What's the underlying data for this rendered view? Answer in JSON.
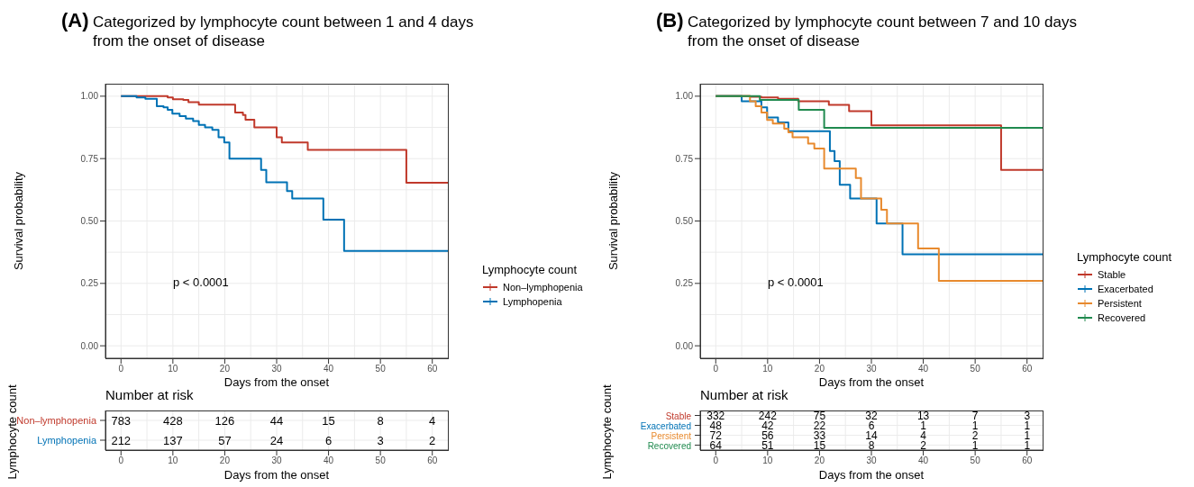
{
  "chart_data": [
    {
      "type": "step",
      "title": "(A)",
      "subtitle": "Categorized by lymphocyte count between 1 and 4 days from the onset of disease",
      "xlabel": "Days from the onset",
      "ylabel": "Survival probability",
      "legend_title": "Lymphocyte count",
      "legend": "right",
      "grid": true,
      "xlim": [
        -3,
        63
      ],
      "xticks": [
        0,
        10,
        20,
        30,
        40,
        50,
        60
      ],
      "ylim": [
        -0.05,
        1.05
      ],
      "yticks": [
        {
          "value": 0,
          "label": "0.00"
        },
        {
          "value": 0.25,
          "label": "0.25"
        },
        {
          "value": 0.5,
          "label": "0.50"
        },
        {
          "value": 0.75,
          "label": "0.75"
        },
        {
          "value": 1,
          "label": "1.00"
        }
      ],
      "annotations": [
        "p < 0.0001"
      ],
      "series": [
        {
          "name": "Non–lymphopenia",
          "color": "#c0392b",
          "x": [
            0,
            9,
            10,
            12,
            13,
            15,
            22,
            23.5,
            24,
            25.7,
            30,
            31,
            36,
            55,
            63
          ],
          "values": [
            1,
            0.995,
            0.988,
            0.985,
            0.976,
            0.966,
            0.935,
            0.925,
            0.906,
            0.875,
            0.835,
            0.815,
            0.785,
            0.653,
            0.653
          ]
        },
        {
          "name": "Lymphopenia",
          "color": "#0072b5",
          "x": [
            0,
            3,
            4.7,
            6.9,
            8.2,
            9,
            9.9,
            11.3,
            12.5,
            13.9,
            15,
            16.2,
            17.6,
            18.8,
            19.9,
            20.9,
            27,
            28,
            32,
            33,
            39,
            43,
            63
          ],
          "values": [
            1,
            0.995,
            0.99,
            0.96,
            0.955,
            0.945,
            0.93,
            0.92,
            0.91,
            0.9,
            0.885,
            0.875,
            0.865,
            0.835,
            0.815,
            0.75,
            0.705,
            0.655,
            0.62,
            0.59,
            0.505,
            0.38,
            0.38
          ]
        }
      ]
    },
    {
      "type": "heatmap",
      "title": "Number at risk",
      "xlabel": "Days from the onset",
      "ylabel": "Lymphocyte count",
      "grid": true,
      "data_labels": true,
      "x": [
        0,
        10,
        20,
        30,
        40,
        50,
        60
      ],
      "xlim": [
        -3,
        63
      ],
      "xticks": [
        0,
        10,
        20,
        30,
        40,
        50,
        60
      ],
      "y_categories": [
        "Non–lymphopenia",
        "Lymphopenia"
      ],
      "colors": [
        "#c0392b",
        "#0072b5"
      ],
      "cells": [
        [
          783,
          428,
          126,
          44,
          15,
          8,
          4
        ],
        [
          212,
          137,
          57,
          24,
          6,
          3,
          2
        ]
      ]
    },
    {
      "type": "step",
      "title": "(B)",
      "subtitle": "Categorized by lymphocyte count between 7 and 10 days from the onset of disease",
      "xlabel": "Days from the onset",
      "ylabel": "Survival probability",
      "legend_title": "Lymphocyte count",
      "legend": "right",
      "grid": true,
      "xlim": [
        -3,
        63
      ],
      "xticks": [
        0,
        10,
        20,
        30,
        40,
        50,
        60
      ],
      "ylim": [
        -0.05,
        1.05
      ],
      "yticks": [
        {
          "value": 0,
          "label": "0.00"
        },
        {
          "value": 0.25,
          "label": "0.25"
        },
        {
          "value": 0.5,
          "label": "0.50"
        },
        {
          "value": 0.75,
          "label": "0.75"
        },
        {
          "value": 1,
          "label": "1.00"
        }
      ],
      "annotations": [
        "p < 0.0001"
      ],
      "series": [
        {
          "name": "Stable",
          "color": "#c0392b",
          "x": [
            0,
            6.6,
            8.8,
            12,
            15.9,
            21.8,
            25.7,
            30,
            55,
            63
          ],
          "values": [
            1,
            0.998,
            0.995,
            0.99,
            0.98,
            0.965,
            0.94,
            0.883,
            0.705,
            0.705
          ]
        },
        {
          "name": "Exacerbated",
          "color": "#0072b5",
          "x": [
            0,
            5,
            8.8,
            9.9,
            12,
            14,
            22,
            22.9,
            23.9,
            25.9,
            31,
            36,
            63
          ],
          "values": [
            1,
            0.98,
            0.955,
            0.915,
            0.895,
            0.86,
            0.78,
            0.74,
            0.645,
            0.59,
            0.49,
            0.367,
            0.367
          ]
        },
        {
          "name": "Persistent",
          "color": "#e88a2e",
          "x": [
            0,
            6.6,
            7.7,
            8.8,
            9.9,
            11,
            13.2,
            14,
            14.8,
            17.8,
            19,
            20.9,
            27,
            28,
            31.9,
            33,
            39,
            43,
            63
          ],
          "values": [
            1,
            0.98,
            0.96,
            0.935,
            0.905,
            0.89,
            0.87,
            0.855,
            0.835,
            0.81,
            0.79,
            0.71,
            0.672,
            0.59,
            0.545,
            0.49,
            0.39,
            0.26,
            0.26
          ]
        },
        {
          "name": "Recovered",
          "color": "#208a4f",
          "x": [
            0,
            8.5,
            16,
            20.9,
            63
          ],
          "values": [
            1,
            0.985,
            0.945,
            0.873,
            0.873
          ]
        }
      ]
    },
    {
      "type": "heatmap",
      "title": "Number at risk",
      "xlabel": "Days from the onset",
      "ylabel": "Lymphocyte count",
      "grid": true,
      "data_labels": true,
      "x": [
        0,
        10,
        20,
        30,
        40,
        50,
        60
      ],
      "xlim": [
        -3,
        63
      ],
      "xticks": [
        0,
        10,
        20,
        30,
        40,
        50,
        60
      ],
      "y_categories": [
        "Stable",
        "Exacerbated",
        "Persistent",
        "Recovered"
      ],
      "colors": [
        "#c0392b",
        "#0072b5",
        "#e88a2e",
        "#208a4f"
      ],
      "cells": [
        [
          332,
          242,
          75,
          32,
          13,
          7,
          3
        ],
        [
          48,
          42,
          22,
          6,
          1,
          1,
          1
        ],
        [
          72,
          56,
          33,
          14,
          4,
          2,
          1
        ],
        [
          64,
          51,
          15,
          8,
          2,
          1,
          1
        ]
      ]
    }
  ]
}
